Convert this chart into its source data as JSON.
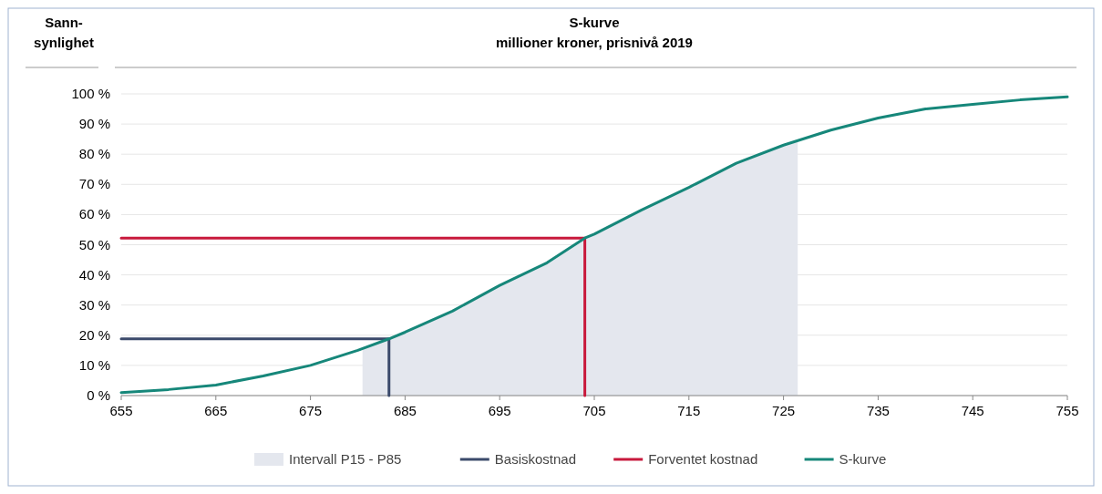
{
  "chart_data": {
    "type": "line",
    "title": "S-kurve",
    "subtitle": "millioner kroner, prisnivå 2019",
    "ylabel": "Sann-\nsynlighet",
    "xlim": [
      655,
      755
    ],
    "xticks": [
      655,
      665,
      675,
      685,
      695,
      705,
      715,
      725,
      735,
      745,
      755
    ],
    "ylim": [
      0,
      100
    ],
    "yticks": [
      {
        "value": 0,
        "label": "0 %"
      },
      {
        "value": 10,
        "label": "10 %"
      },
      {
        "value": 20,
        "label": "20 %"
      },
      {
        "value": 30,
        "label": "30 %"
      },
      {
        "value": 40,
        "label": "40 %"
      },
      {
        "value": 50,
        "label": "50 %"
      },
      {
        "value": 60,
        "label": "60 %"
      },
      {
        "value": 70,
        "label": "70 %"
      },
      {
        "value": 80,
        "label": "80 %"
      },
      {
        "value": 90,
        "label": "90 %"
      },
      {
        "value": 100,
        "label": "100 %"
      }
    ],
    "grid": "y",
    "legend": "bottom",
    "bands": [
      {
        "axis": "x",
        "from": 680.5,
        "to": 726.5,
        "label": "Intervall P15 - P85",
        "color": "#e4e7ee"
      }
    ],
    "series": [
      {
        "name": "Basiskostnad",
        "color": "#3b4a6b",
        "x": [
          655,
          683.3,
          683.3
        ],
        "values": [
          18.8,
          18.8,
          0
        ]
      },
      {
        "name": "Forventet kostnad",
        "color": "#c8193c",
        "x": [
          655,
          704,
          704
        ],
        "values": [
          52.2,
          52.2,
          0
        ]
      },
      {
        "name": "S-kurve",
        "color": "#16877a",
        "x": [
          655,
          660,
          665,
          670,
          675,
          680,
          683.3,
          685,
          690,
          695,
          700,
          704,
          705,
          710,
          715,
          720,
          725,
          730,
          735,
          740,
          745,
          750,
          755
        ],
        "values": [
          1,
          2,
          3.5,
          6.5,
          10,
          15,
          18.8,
          21,
          28,
          36.5,
          44,
          52.2,
          53.5,
          61.5,
          69,
          77,
          83,
          88,
          92,
          95,
          96.5,
          98,
          99
        ]
      }
    ]
  }
}
